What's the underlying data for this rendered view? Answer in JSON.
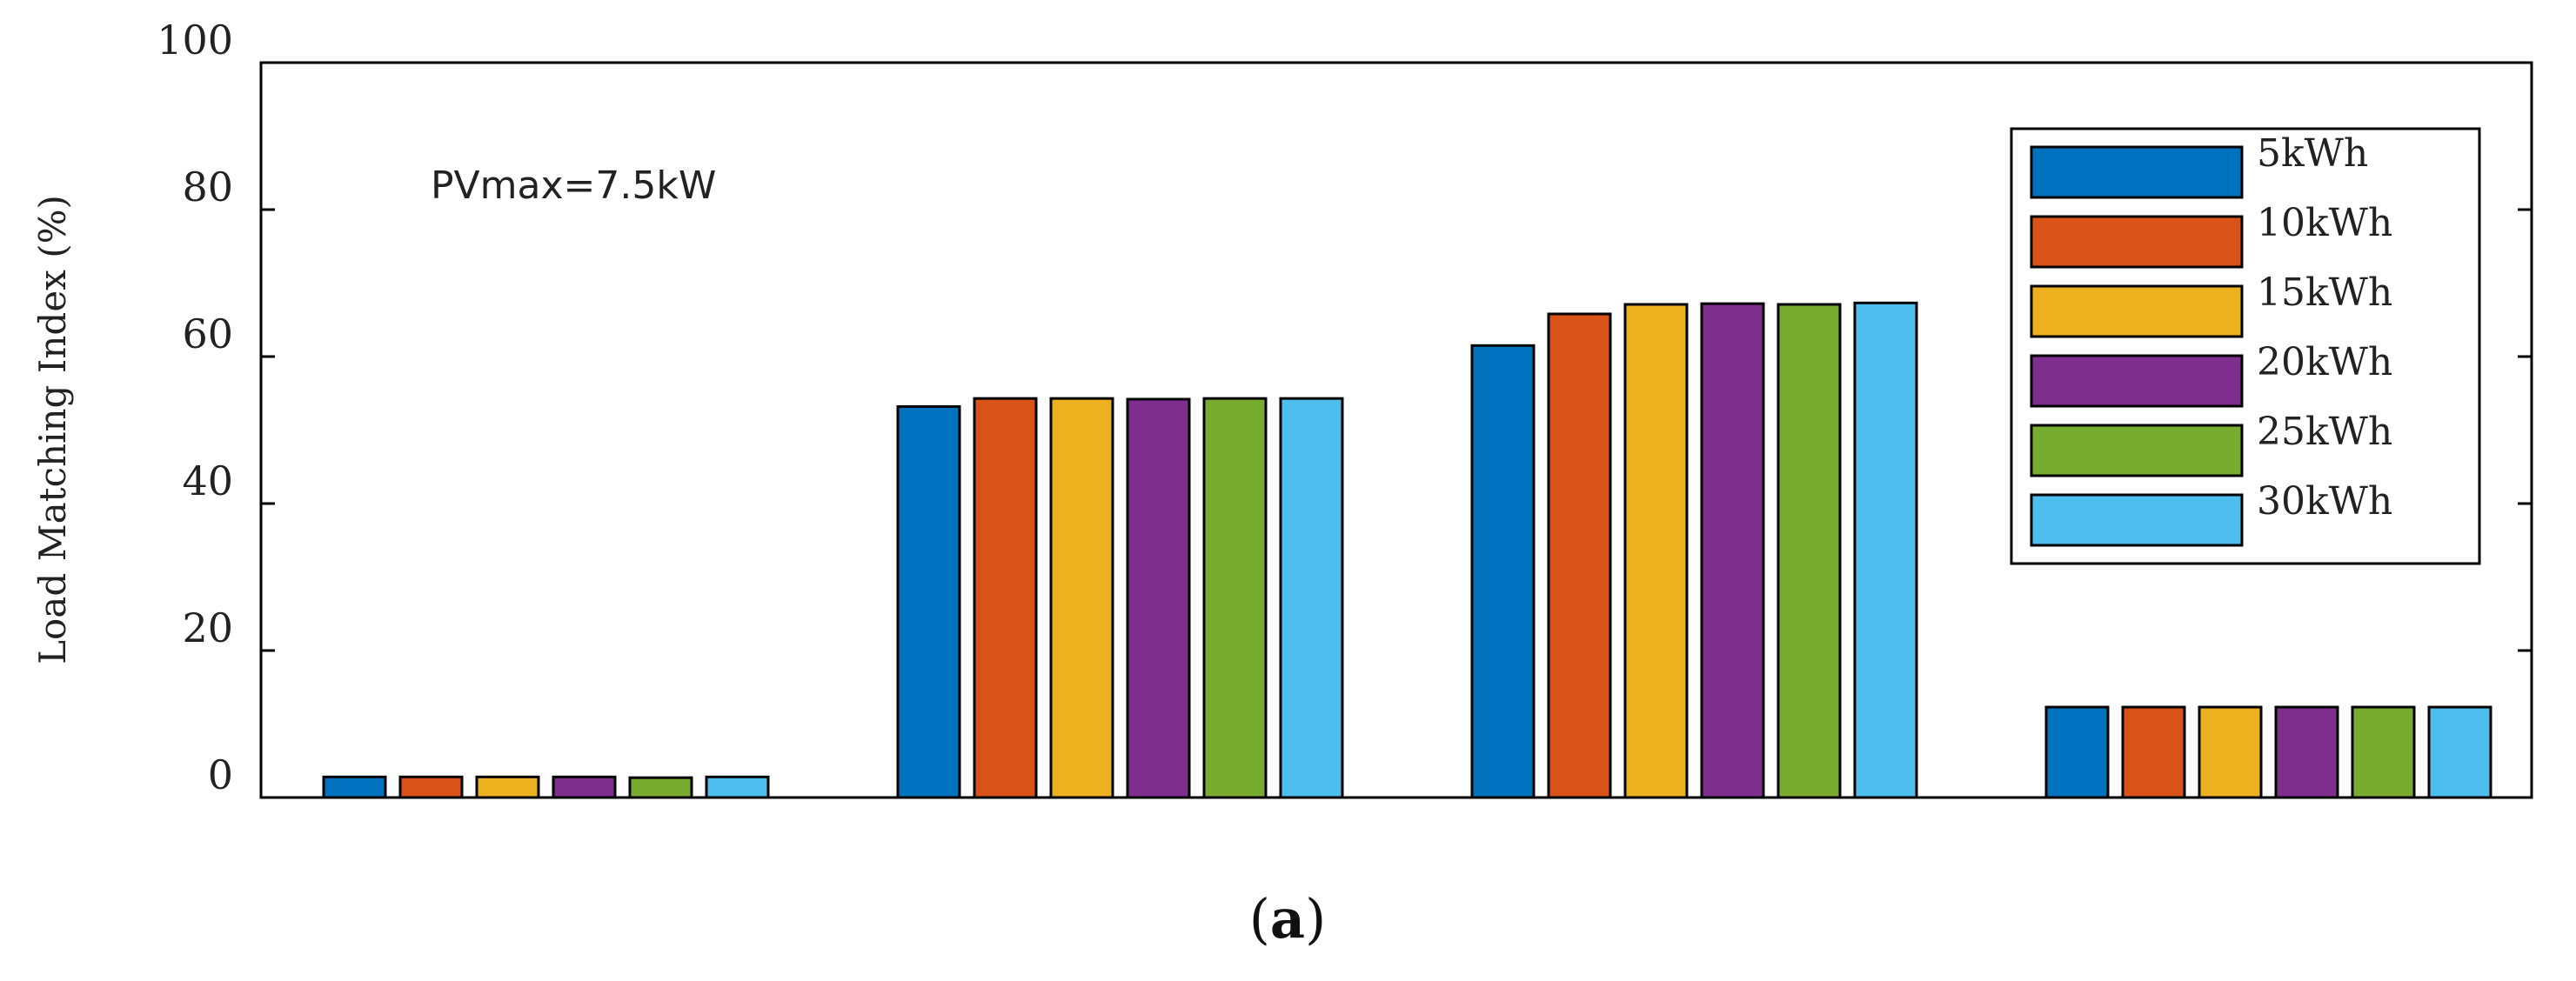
{
  "chart_data": {
    "type": "bar",
    "title": "",
    "xlabel": "",
    "ylabel": "Load Matching Index (%)",
    "ylim": [
      0,
      100
    ],
    "yticks": [
      0,
      20,
      40,
      60,
      80,
      100
    ],
    "grid": false,
    "legend_position": "top-right",
    "annotation": "PVmax=7.5kW",
    "caption": {
      "open": "(",
      "letter": "a",
      "close": ")"
    },
    "categories": [
      "",
      "",
      "",
      ""
    ],
    "series": [
      {
        "name": "5kWh",
        "color": "#0072BD",
        "values": [
          2.8,
          53.2,
          61.5,
          12.3
        ]
      },
      {
        "name": "10kWh",
        "color": "#D95319",
        "values": [
          2.8,
          54.3,
          65.8,
          12.3
        ]
      },
      {
        "name": "15kWh",
        "color": "#EDB120",
        "values": [
          2.8,
          54.3,
          67.1,
          12.3
        ]
      },
      {
        "name": "20kWh",
        "color": "#7E2F8E",
        "values": [
          2.8,
          54.2,
          67.2,
          12.3
        ]
      },
      {
        "name": "25kWh",
        "color": "#77AC30",
        "values": [
          2.7,
          54.3,
          67.1,
          12.3
        ]
      },
      {
        "name": "30kWh",
        "color": "#4DBEEE",
        "values": [
          2.8,
          54.3,
          67.3,
          12.3
        ]
      }
    ]
  }
}
